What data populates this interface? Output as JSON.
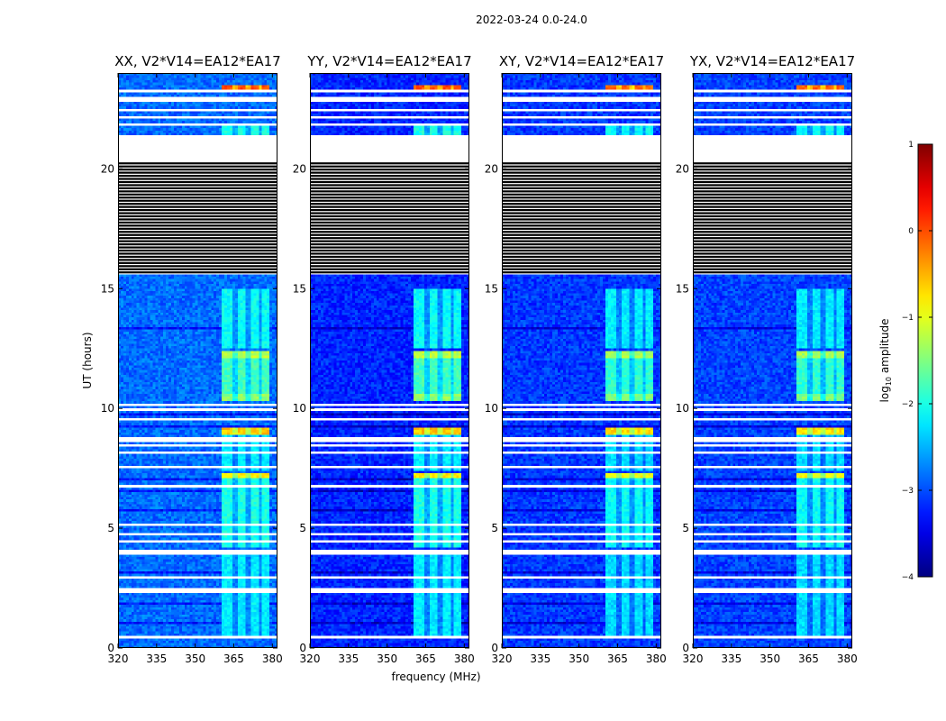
{
  "suptitle": "2022-03-24 0.0-24.0",
  "colors": {
    "background": "#ffffff",
    "axes": "#000000",
    "gap": "#ffffff",
    "colormap": "jet"
  },
  "chart_data": {
    "type": "heatmap",
    "panels": [
      {
        "title": "XX, V2*V14=EA12*EA17",
        "correlation": "XX"
      },
      {
        "title": "YY, V2*V14=EA12*EA17",
        "correlation": "YY"
      },
      {
        "title": "XY, V2*V14=EA12*EA17",
        "correlation": "XY"
      },
      {
        "title": "YX, V2*V14=EA12*EA17",
        "correlation": "YX"
      }
    ],
    "xlabel": "frequency (MHz)",
    "ylabel": "UT (hours)",
    "xlim": [
      320,
      382
    ],
    "ylim": [
      0,
      24
    ],
    "xticks": [
      320,
      335,
      350,
      365,
      380
    ],
    "xtick_labels": [
      "320",
      "335",
      "350",
      "365",
      "380"
    ],
    "yticks": [
      0,
      5,
      10,
      15,
      20
    ],
    "ytick_labels": [
      "0",
      "5",
      "10",
      "15",
      "20"
    ],
    "colorbar": {
      "label_prefix": "log",
      "label_sub": "10",
      "label_suffix": " amplitude",
      "range": [
        -4,
        1
      ],
      "ticks": [
        1,
        0,
        -1,
        -2,
        -3,
        -4
      ],
      "tick_labels": [
        "1",
        "0",
        "−1",
        "−2",
        "−3",
        "−4"
      ]
    },
    "background_level": -3.4,
    "rfi_band_MHz": [
      360,
      379
    ],
    "rfi_channels_MHz": [
      [
        360,
        364
      ],
      [
        366,
        370
      ],
      [
        372,
        375
      ],
      [
        376,
        379
      ]
    ],
    "empty_UT_ranges": [
      [
        15.6,
        21.2
      ]
    ],
    "striped_UT_range": [
      15.6,
      20.3
    ],
    "white_gap_UT_ranges": [
      [
        0.35,
        0.5
      ],
      [
        1.45,
        1.55
      ],
      [
        1.65,
        1.75
      ],
      [
        2.15,
        2.2
      ],
      [
        2.35,
        2.45
      ],
      [
        2.9,
        2.95
      ],
      [
        3.35,
        3.45
      ],
      [
        3.9,
        4.15
      ],
      [
        4.4,
        4.45
      ],
      [
        4.75,
        4.8
      ],
      [
        5.1,
        5.15
      ],
      [
        5.95,
        6.0
      ],
      [
        6.75,
        6.8
      ],
      [
        7.3,
        7.35
      ],
      [
        7.55,
        7.6
      ],
      [
        8.15,
        8.2
      ],
      [
        8.4,
        8.5
      ],
      [
        8.6,
        8.85
      ],
      [
        9.5,
        9.6
      ],
      [
        9.9,
        10.0
      ],
      [
        10.05,
        10.25
      ],
      [
        12.4,
        12.45
      ],
      [
        15.0,
        15.05
      ],
      [
        21.2,
        21.4
      ],
      [
        21.8,
        21.9
      ],
      [
        22.1,
        22.2
      ],
      [
        22.4,
        22.5
      ],
      [
        22.85,
        23.0
      ],
      [
        23.2,
        23.3
      ]
    ],
    "dark_line_UT": [
      1.05,
      1.85,
      2.6,
      3.15,
      4.9,
      5.5,
      5.75,
      6.3,
      6.55,
      7.05,
      7.8,
      8.3,
      9.25,
      9.75,
      11.0,
      11.6,
      12.2,
      12.9,
      13.35,
      13.6,
      13.8,
      14.3
    ],
    "activity_segments": [
      {
        "ut": [
          0.5,
          4.0
        ],
        "level": -2.2
      },
      {
        "ut": [
          4.2,
          7.1
        ],
        "level": -2.0
      },
      {
        "ut": [
          7.1,
          7.3
        ],
        "level": -0.8
      },
      {
        "ut": [
          7.4,
          8.9
        ],
        "level": -2.2
      },
      {
        "ut": [
          8.95,
          9.25
        ],
        "level": -0.6
      },
      {
        "ut": [
          10.3,
          10.6
        ],
        "level": -1.4
      },
      {
        "ut": [
          10.6,
          12.1
        ],
        "level": -1.8
      },
      {
        "ut": [
          12.1,
          12.4
        ],
        "level": -1.2
      },
      {
        "ut": [
          12.5,
          15.0
        ],
        "level": -2.1
      },
      {
        "ut": [
          21.4,
          21.9
        ],
        "level": -2.0
      },
      {
        "ut": [
          23.3,
          23.5
        ],
        "level": 0.0
      }
    ],
    "panel_modifiers": {
      "XX": {
        "background_offset": 0.55,
        "band_offset": 0.0
      },
      "YY": {
        "background_offset": 0.2,
        "band_offset": 0.0
      },
      "XY": {
        "background_offset": 0.3,
        "band_offset": -0.1
      },
      "YX": {
        "background_offset": 0.35,
        "band_offset": -0.1
      }
    }
  }
}
